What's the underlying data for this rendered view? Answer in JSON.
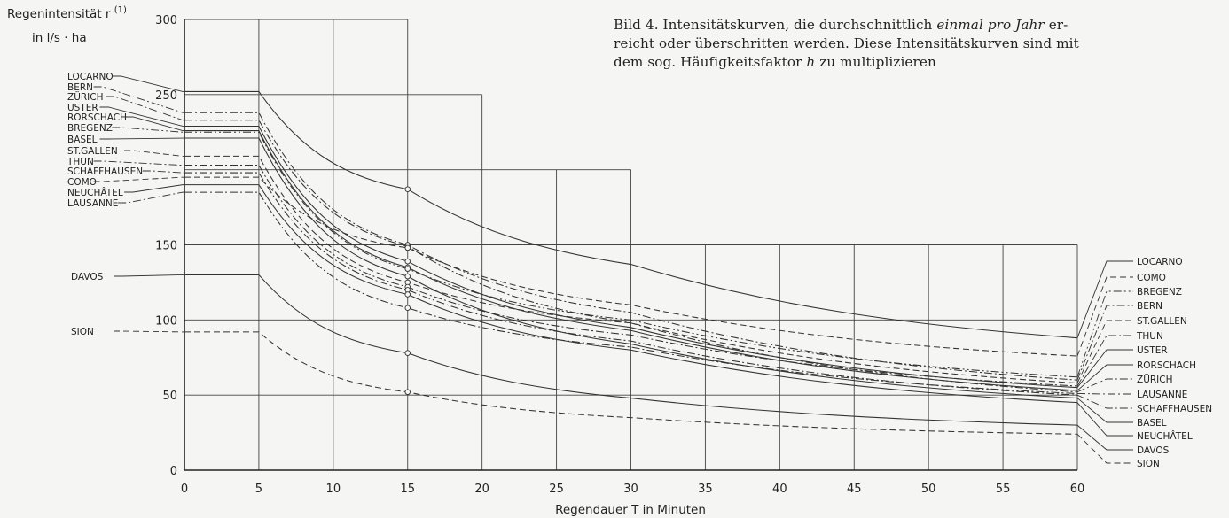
{
  "caption": {
    "line1_a": "Bild 4. Intensitätskurven, die durchschnittlich ",
    "line1_em": "einmal pro Jahr",
    "line1_b": " er-",
    "line2": "reicht oder überschritten werden. Diese Intensitätskurven sind mit",
    "line3_a": "dem sog. Häufigkeitsfaktor ",
    "line3_em": "h",
    "line3_b": " zu multiplizieren"
  },
  "chart_data": {
    "type": "line",
    "ylabel_line1": "Regenintensität  r",
    "ylabel_sup": "(1)",
    "ylabel_line2": "in l/s · ha",
    "xlabel": "Regendauer  T  in Minuten",
    "xlim": [
      0,
      60
    ],
    "ylim": [
      0,
      300
    ],
    "x": [
      0,
      5,
      15,
      30,
      60
    ],
    "x_ticks": [
      "0",
      "5",
      "10",
      "15",
      "20",
      "25",
      "30",
      "35",
      "40",
      "45",
      "50",
      "55",
      "60"
    ],
    "y_ticks": [
      "0",
      "50",
      "100",
      "150",
      "250",
      "300"
    ],
    "series": [
      {
        "name": "LOCARNO",
        "values": [
          252,
          252,
          187,
          137,
          88
        ],
        "style": "solid"
      },
      {
        "name": "BERN",
        "values": [
          238,
          238,
          150,
          105,
          60
        ],
        "style": "dashdot"
      },
      {
        "name": "ZÜRICH",
        "values": [
          233,
          233,
          149,
          98,
          52
        ],
        "style": "dashdot"
      },
      {
        "name": "USTER",
        "values": [
          229,
          229,
          139,
          95,
          55
        ],
        "style": "solid"
      },
      {
        "name": "RORSCHACH",
        "values": [
          226,
          226,
          135,
          93,
          53
        ],
        "style": "solid"
      },
      {
        "name": "BREGENZ",
        "values": [
          225,
          225,
          134,
          100,
          62
        ],
        "style": "dashdotdot"
      },
      {
        "name": "BASEL",
        "values": [
          221,
          221,
          129,
          84,
          48
        ],
        "style": "solid"
      },
      {
        "name": "ST.GALLEN",
        "values": [
          209,
          209,
          125,
          98,
          58
        ],
        "style": "dash"
      },
      {
        "name": "THUN",
        "values": [
          203,
          203,
          122,
          90,
          56
        ],
        "style": "dashdot"
      },
      {
        "name": "SCHAFFHAUSEN",
        "values": [
          198,
          198,
          120,
          86,
          50
        ],
        "style": "dashdot"
      },
      {
        "name": "COMO",
        "values": [
          195,
          195,
          148,
          110,
          76
        ],
        "style": "dash"
      },
      {
        "name": "NEUCHÂTEL",
        "values": [
          190,
          190,
          117,
          80,
          45
        ],
        "style": "solid"
      },
      {
        "name": "LAUSANNE",
        "values": [
          185,
          185,
          108,
          82,
          51
        ],
        "style": "dashdot"
      },
      {
        "name": "DAVOS",
        "values": [
          130,
          130,
          78,
          48,
          30
        ],
        "style": "solid"
      },
      {
        "name": "SION",
        "values": [
          92,
          92,
          52,
          35,
          24
        ],
        "style": "dash"
      }
    ],
    "left_labels": [
      "LOCARNO",
      "BERN",
      "ZÜRICH",
      "USTER",
      "RORSCHACH",
      "BREGENZ",
      "BASEL",
      "ST.GALLEN",
      "THUN",
      "SCHAFFHAUSEN",
      "COMO",
      "NEUCHÂTEL",
      "LAUSANNE",
      "DAVOS",
      "SION"
    ],
    "right_labels": [
      "LOCARNO",
      "COMO",
      "BREGENZ",
      "BERN",
      "ST.GALLEN",
      "THUN",
      "USTER",
      "RORSCHACH",
      "ZÜRICH",
      "LAUSANNE",
      "SCHAFFHAUSEN",
      "BASEL",
      "NEUCHÂTEL",
      "DAVOS",
      "SION"
    ],
    "grid": true
  }
}
